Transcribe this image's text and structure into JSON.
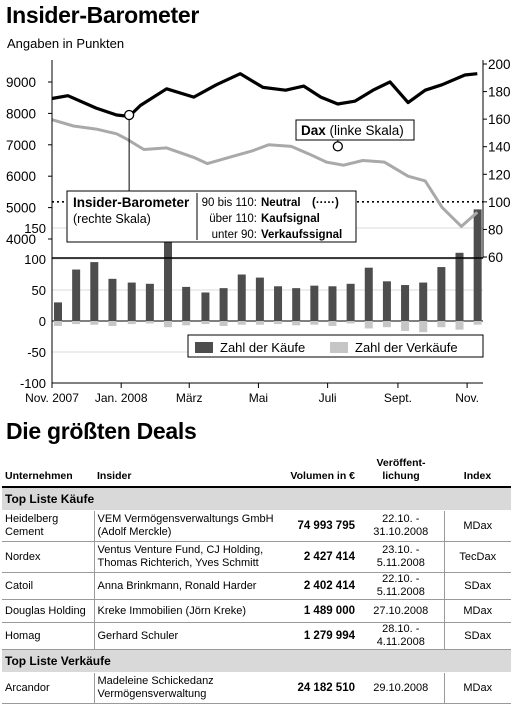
{
  "chart_title": "Insider-Barometer",
  "chart_subtitle": "Angaben in Punkten",
  "chart_data": {
    "type": "line+bar",
    "x_ticks": [
      "Nov. 2007",
      "Jan. 2008",
      "März",
      "Mai",
      "Juli",
      "Sept.",
      "Nov."
    ],
    "y_left_ticks": [
      "9000",
      "8000",
      "7000",
      "6000",
      "5000",
      "4000"
    ],
    "y_right_ticks": [
      "200",
      "180",
      "160",
      "140",
      "120",
      "100",
      "80",
      "60"
    ],
    "y_bar_ticks": [
      "150",
      "100",
      "50",
      "0",
      "-50",
      "-100"
    ],
    "series_dax_x": [
      "2007-11-01",
      "2007-11-20",
      "2007-12-10",
      "2007-12-28",
      "2008-01-05",
      "2008-01-21",
      "2008-02-10",
      "2008-03-05",
      "2008-03-17",
      "2008-04-05",
      "2008-04-25",
      "2008-05-10",
      "2008-05-30",
      "2008-06-15",
      "2008-06-30",
      "2008-07-15",
      "2008-08-01",
      "2008-08-20",
      "2008-09-10",
      "2008-09-25",
      "2008-10-10",
      "2008-10-27",
      "2008-11-10"
    ],
    "series_dax_y": [
      7800,
      7600,
      7500,
      7350,
      7200,
      6850,
      6900,
      6600,
      6400,
      6600,
      6800,
      7000,
      6950,
      6700,
      6450,
      6350,
      6500,
      6450,
      6000,
      5850,
      5000,
      4400,
      4850
    ],
    "series_barometer_x": [
      "2007-11-01",
      "2007-11-15",
      "2007-12-10",
      "2007-12-28",
      "2008-01-08",
      "2008-01-18",
      "2008-02-10",
      "2008-03-05",
      "2008-03-25",
      "2008-04-15",
      "2008-05-05",
      "2008-05-25",
      "2008-06-10",
      "2008-06-25",
      "2008-07-10",
      "2008-07-25",
      "2008-08-10",
      "2008-08-25",
      "2008-09-10",
      "2008-09-25",
      "2008-10-10",
      "2008-10-30",
      "2008-11-10"
    ],
    "series_barometer_y": [
      175,
      177,
      168,
      163,
      162,
      170,
      182,
      176,
      185,
      193,
      183,
      181,
      184,
      176,
      171,
      173,
      181,
      187,
      172,
      181,
      185,
      192,
      193
    ],
    "bars_x": [
      "2007-11-01",
      "2007-11-17",
      "2007-12-03",
      "2007-12-19",
      "2008-01-05",
      "2008-01-21",
      "2008-02-06",
      "2008-02-22",
      "2008-03-10",
      "2008-03-26",
      "2008-04-11",
      "2008-04-27",
      "2008-05-13",
      "2008-05-29",
      "2008-06-14",
      "2008-06-30",
      "2008-07-16",
      "2008-08-01",
      "2008-08-17",
      "2008-09-02",
      "2008-09-18",
      "2008-10-04",
      "2008-10-20",
      "2008-11-05"
    ],
    "bars_buy": [
      30,
      83,
      95,
      68,
      62,
      60,
      150,
      55,
      46,
      53,
      75,
      70,
      56,
      53,
      57,
      56,
      60,
      86,
      64,
      58,
      62,
      87,
      110,
      180
    ],
    "bars_sell": [
      -8,
      -5,
      -6,
      -8,
      -5,
      -4,
      -10,
      -7,
      -5,
      -8,
      -6,
      -6,
      -5,
      -7,
      -6,
      -8,
      -4,
      -12,
      -10,
      -16,
      -18,
      -10,
      -14,
      -6
    ],
    "legend_buy": "Zahl der Käufe",
    "legend_sell": "Zahl der Verkäufe",
    "dax_label": "Dax",
    "dax_scale": "(linke Skala)",
    "baro_label": "Insider-Barometer",
    "baro_scale": "(rechte Skala)",
    "signal_lines": [
      {
        "range": "90 bis 110:",
        "text": "Neutral",
        "sym": "(·····)"
      },
      {
        "range": "über 110:",
        "text": "Kaufsignal",
        "sym": ""
      },
      {
        "range": "unter 90:",
        "text": "Verkaufssignal",
        "sym": ""
      }
    ]
  },
  "colors": {
    "buy": "#4d4d4d",
    "sell": "#c6c6c6",
    "dax": "#a9a9a9",
    "barometer": "#000000"
  },
  "deals": {
    "title": "Die größten Deals",
    "headers": [
      "Unternehmen",
      "Insider",
      "Volumen in €",
      "Veröffent-lichung",
      "Index"
    ],
    "section_buy": "Top Liste Käufe",
    "section_sell": "Top Liste Verkäufe",
    "buy_rows": [
      {
        "company": "Heidelberg Cement",
        "insider": "VEM Vermögensverwaltungs GmbH (Adolf Merckle)",
        "volume": "74 993 795",
        "date": "22.10. - 31.10.2008",
        "index": "MDax"
      },
      {
        "company": "Nordex",
        "insider": "Ventus Venture Fund, CJ Holding, Thomas Richterich, Yves Schmitt",
        "volume": "2 427 414",
        "date": "23.10. - 5.11.2008",
        "index": "TecDax"
      },
      {
        "company": "Catoil",
        "insider": "Anna Brinkmann, Ronald Harder",
        "volume": "2 402 414",
        "date": "22.10. - 5.11.2008",
        "index": "SDax"
      },
      {
        "company": "Douglas Holding",
        "insider": "Kreke Immobilien (Jörn Kreke)",
        "volume": "1 489 000",
        "date": "27.10.2008",
        "index": "MDax"
      },
      {
        "company": "Homag",
        "insider": "Gerhard Schuler",
        "volume": "1 279 994",
        "date": "28.10. - 4.11.2008",
        "index": "SDax"
      }
    ],
    "sell_rows": [
      {
        "company": "Arcandor",
        "insider": "Madeleine Schickedanz Vermögensverwaltung",
        "volume": "24 182 510",
        "date": "29.10.2008",
        "index": "MDax"
      }
    ]
  }
}
